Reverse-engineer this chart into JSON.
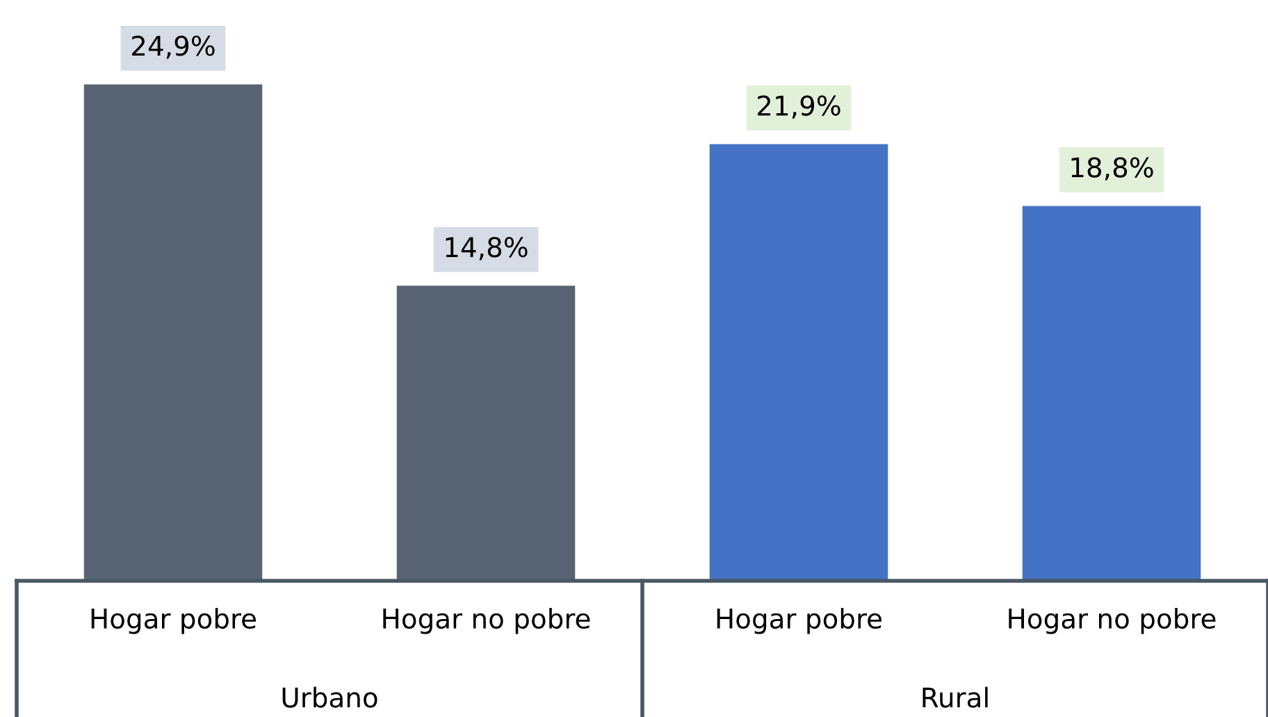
{
  "chart_data": {
    "type": "bar",
    "categories": [
      "Hogar pobre",
      "Hogar no pobre",
      "Hogar pobre",
      "Hogar no pobre"
    ],
    "values": [
      24.9,
      14.8,
      21.9,
      18.8
    ],
    "colors": [
      "#586474",
      "#586474",
      "#4472c4",
      "#4472c4"
    ],
    "value_labels": [
      "24,9%",
      "14,8%",
      "21,9%",
      "18,8%"
    ],
    "annotations": [
      "Urbano",
      "Rural"
    ],
    "tick_labels": "x"
  }
}
